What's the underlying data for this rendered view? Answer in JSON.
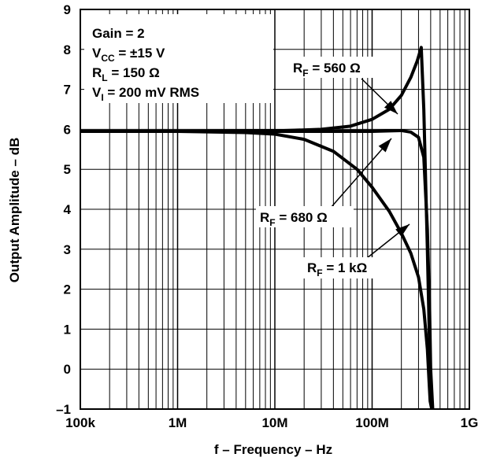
{
  "chart_data": {
    "type": "line",
    "xscale": "log",
    "xlabel": "f – Frequency – Hz",
    "ylabel": "Output Amplitude – dB",
    "xlim": [
      100000,
      1000000000
    ],
    "ylim": [
      -1,
      9
    ],
    "x_ticks": [
      {
        "value": 100000,
        "label": "100k"
      },
      {
        "value": 1000000,
        "label": "1M"
      },
      {
        "value": 10000000,
        "label": "10M"
      },
      {
        "value": 100000000,
        "label": "100M"
      },
      {
        "value": 1000000000,
        "label": "1G"
      }
    ],
    "y_ticks": [
      -1,
      0,
      1,
      2,
      3,
      4,
      5,
      6,
      7,
      8,
      9
    ],
    "y_tick_labels": [
      "–1",
      "0",
      "1",
      "2",
      "3",
      "4",
      "5",
      "6",
      "7",
      "8",
      "9"
    ],
    "grid": true,
    "conditions": {
      "gain": {
        "main": "Gain = 2"
      },
      "vcc": {
        "main": "V",
        "sub": "CC",
        "rest": " = ±15 V"
      },
      "rl": {
        "main": "R",
        "sub": "L",
        "rest": " = 150 Ω"
      },
      "vi": {
        "main": "V",
        "sub": "I",
        "rest": " = 200 mV RMS"
      }
    },
    "series": [
      {
        "name": "R_F = 560 Ω",
        "label": {
          "main": "R",
          "sub": "F",
          "rest": " = 560 Ω"
        },
        "x": [
          100000,
          1000000,
          10000000,
          30000000,
          60000000,
          100000000,
          150000000,
          200000000,
          250000000,
          290000000,
          320000000,
          340000000,
          370000000,
          390000000,
          410000000
        ],
        "y": [
          5.95,
          5.95,
          5.96,
          6.0,
          6.08,
          6.25,
          6.5,
          6.85,
          7.3,
          7.7,
          8.05,
          6.5,
          3.0,
          0.5,
          -1
        ]
      },
      {
        "name": "R_F = 680 Ω",
        "label": {
          "main": "R",
          "sub": "F",
          "rest": " = 680 Ω"
        },
        "x": [
          100000,
          1000000,
          10000000,
          50000000,
          100000000,
          150000000,
          200000000,
          250000000,
          300000000,
          340000000,
          370000000,
          390000000,
          400000000,
          420000000
        ],
        "y": [
          5.95,
          5.95,
          5.95,
          5.95,
          5.95,
          5.96,
          5.97,
          5.93,
          5.8,
          5.3,
          3.5,
          1.5,
          0.0,
          -1
        ]
      },
      {
        "name": "R_F = 1 kΩ",
        "label": {
          "main": "R",
          "sub": "F",
          "rest": " = 1 kΩ"
        },
        "x": [
          100000,
          1000000,
          5000000,
          10000000,
          20000000,
          40000000,
          70000000,
          100000000,
          150000000,
          200000000,
          250000000,
          300000000,
          340000000,
          370000000,
          385000000,
          395000000,
          410000000
        ],
        "y": [
          5.95,
          5.95,
          5.92,
          5.88,
          5.75,
          5.45,
          5.0,
          4.55,
          3.95,
          3.4,
          2.9,
          2.3,
          1.5,
          0.5,
          -0.3,
          -0.8,
          -1
        ]
      }
    ]
  }
}
